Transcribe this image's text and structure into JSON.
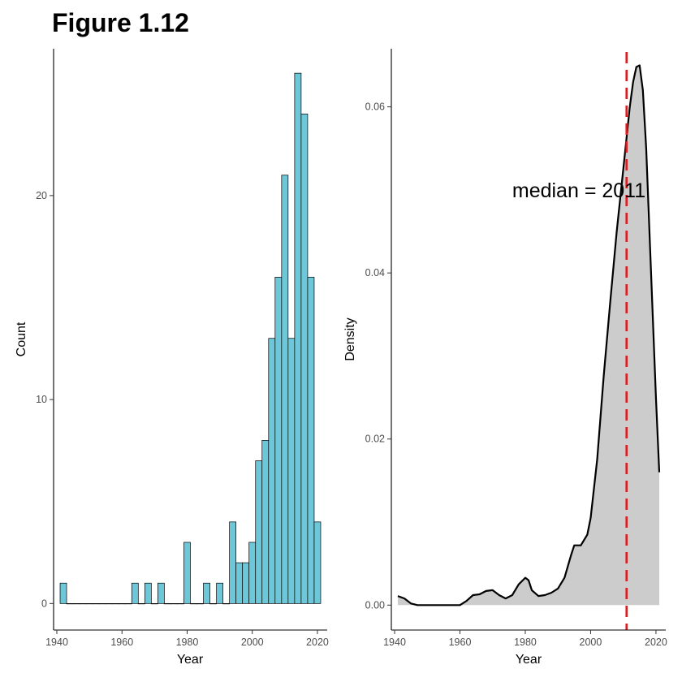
{
  "title": "Figure 1.12",
  "chart_data": [
    {
      "type": "bar",
      "subtype": "histogram",
      "xlabel": "Year",
      "ylabel": "Count",
      "xlim": [
        1939,
        2023
      ],
      "ylim": [
        -1.3,
        27.2
      ],
      "xticks": [
        "1940",
        "1960",
        "1980",
        "2000",
        "2020"
      ],
      "yticks": [
        "0",
        "10",
        "20"
      ],
      "grid": false,
      "fill_color": "#6cc7d8",
      "edge_color": "#000000",
      "bin_width": 2,
      "bins": [
        {
          "x": 1942,
          "count": 1
        },
        {
          "x": 1944,
          "count": 0
        },
        {
          "x": 1946,
          "count": 0
        },
        {
          "x": 1948,
          "count": 0
        },
        {
          "x": 1950,
          "count": 0
        },
        {
          "x": 1952,
          "count": 0
        },
        {
          "x": 1954,
          "count": 0
        },
        {
          "x": 1956,
          "count": 0
        },
        {
          "x": 1958,
          "count": 0
        },
        {
          "x": 1960,
          "count": 0
        },
        {
          "x": 1962,
          "count": 0
        },
        {
          "x": 1964,
          "count": 1
        },
        {
          "x": 1966,
          "count": 0
        },
        {
          "x": 1968,
          "count": 1
        },
        {
          "x": 1970,
          "count": 0
        },
        {
          "x": 1972,
          "count": 1
        },
        {
          "x": 1974,
          "count": 0
        },
        {
          "x": 1976,
          "count": 0
        },
        {
          "x": 1978,
          "count": 0
        },
        {
          "x": 1980,
          "count": 3
        },
        {
          "x": 1982,
          "count": 0
        },
        {
          "x": 1984,
          "count": 0
        },
        {
          "x": 1986,
          "count": 1
        },
        {
          "x": 1988,
          "count": 0
        },
        {
          "x": 1990,
          "count": 1
        },
        {
          "x": 1992,
          "count": 0
        },
        {
          "x": 1994,
          "count": 4
        },
        {
          "x": 1996,
          "count": 2
        },
        {
          "x": 1998,
          "count": 2
        },
        {
          "x": 2000,
          "count": 3
        },
        {
          "x": 2002,
          "count": 7
        },
        {
          "x": 2004,
          "count": 8
        },
        {
          "x": 2006,
          "count": 13
        },
        {
          "x": 2008,
          "count": 16
        },
        {
          "x": 2010,
          "count": 21
        },
        {
          "x": 2012,
          "count": 13
        },
        {
          "x": 2014,
          "count": 26
        },
        {
          "x": 2016,
          "count": 24
        },
        {
          "x": 2018,
          "count": 16
        },
        {
          "x": 2020,
          "count": 4
        }
      ]
    },
    {
      "type": "area",
      "subtype": "density",
      "xlabel": "Year",
      "ylabel": "Density",
      "xlim": [
        1939,
        2023
      ],
      "ylim": [
        -0.003,
        0.067
      ],
      "xticks": [
        "1940",
        "1960",
        "1980",
        "2000",
        "2020"
      ],
      "yticks": [
        "0.00",
        "0.02",
        "0.04",
        "0.06"
      ],
      "grid": false,
      "fill_color": "#cccccc",
      "line_color": "#000000",
      "median": 2011,
      "median_line_color": "#e31a1c",
      "annotation": "median = 2011",
      "annotation_position": {
        "x": 1976,
        "y": 0.05
      },
      "x": [
        1941,
        1943,
        1945,
        1947,
        1950,
        1955,
        1960,
        1962,
        1964,
        1966,
        1968,
        1970,
        1972,
        1974,
        1976,
        1978,
        1980,
        1981,
        1982,
        1984,
        1986,
        1988,
        1990,
        1992,
        1994,
        1995,
        1997,
        1999,
        2000,
        2002,
        2004,
        2006,
        2008,
        2010,
        2012,
        2013,
        2014,
        2015,
        2016,
        2017,
        2018,
        2019,
        2020,
        2021
      ],
      "y": [
        0.0011,
        0.0008,
        0.0002,
        0.0,
        0.0,
        0.0,
        0.0,
        0.0005,
        0.0012,
        0.0013,
        0.0017,
        0.0018,
        0.0012,
        0.0008,
        0.0012,
        0.0025,
        0.0033,
        0.003,
        0.0018,
        0.0011,
        0.0012,
        0.0015,
        0.002,
        0.0033,
        0.006,
        0.0072,
        0.0072,
        0.0085,
        0.0105,
        0.0175,
        0.0275,
        0.0365,
        0.045,
        0.0525,
        0.06,
        0.063,
        0.0648,
        0.065,
        0.062,
        0.055,
        0.045,
        0.035,
        0.025,
        0.016
      ]
    }
  ]
}
